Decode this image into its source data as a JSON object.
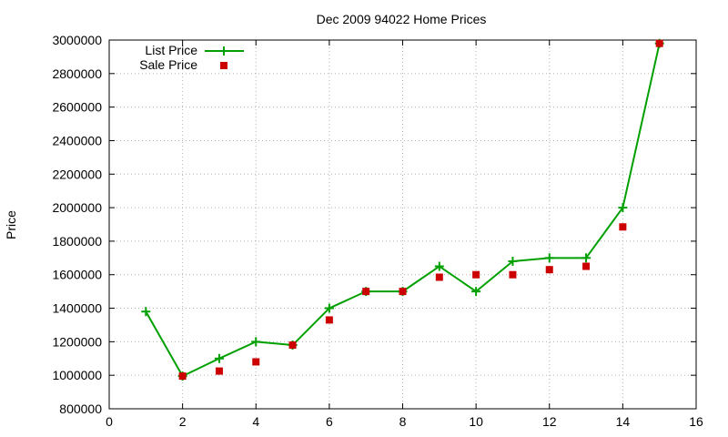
{
  "chart_data": {
    "type": "line",
    "title": "Dec 2009 94022 Home Prices",
    "xlabel": "",
    "ylabel": "Price",
    "xlim": [
      0,
      16
    ],
    "ylim": [
      800000,
      3000000
    ],
    "x_ticks": [
      0,
      2,
      4,
      6,
      8,
      10,
      12,
      14,
      16
    ],
    "y_ticks": [
      800000,
      1000000,
      1200000,
      1400000,
      1600000,
      1800000,
      2000000,
      2200000,
      2400000,
      2600000,
      2800000,
      3000000
    ],
    "grid": true,
    "legend_position": "top-left",
    "series": [
      {
        "name": "List Price",
        "style": "line with plus markers",
        "color": "#00a000",
        "x": [
          1,
          2,
          3,
          4,
          5,
          6,
          7,
          8,
          9,
          10,
          11,
          12,
          13,
          14,
          15
        ],
        "y": [
          1380000,
          995000,
          1100000,
          1200000,
          1180000,
          1400000,
          1500000,
          1500000,
          1650000,
          1500000,
          1680000,
          1700000,
          1700000,
          2000000,
          2980000
        ]
      },
      {
        "name": "Sale Price",
        "style": "square points",
        "color": "#cc0000",
        "x": [
          2,
          3,
          4,
          5,
          6,
          7,
          8,
          9,
          10,
          11,
          12,
          13,
          14,
          15
        ],
        "y": [
          995000,
          1025000,
          1080000,
          1180000,
          1330000,
          1500000,
          1500000,
          1585000,
          1600000,
          1600000,
          1630000,
          1650000,
          1885000,
          2980000
        ]
      }
    ]
  }
}
